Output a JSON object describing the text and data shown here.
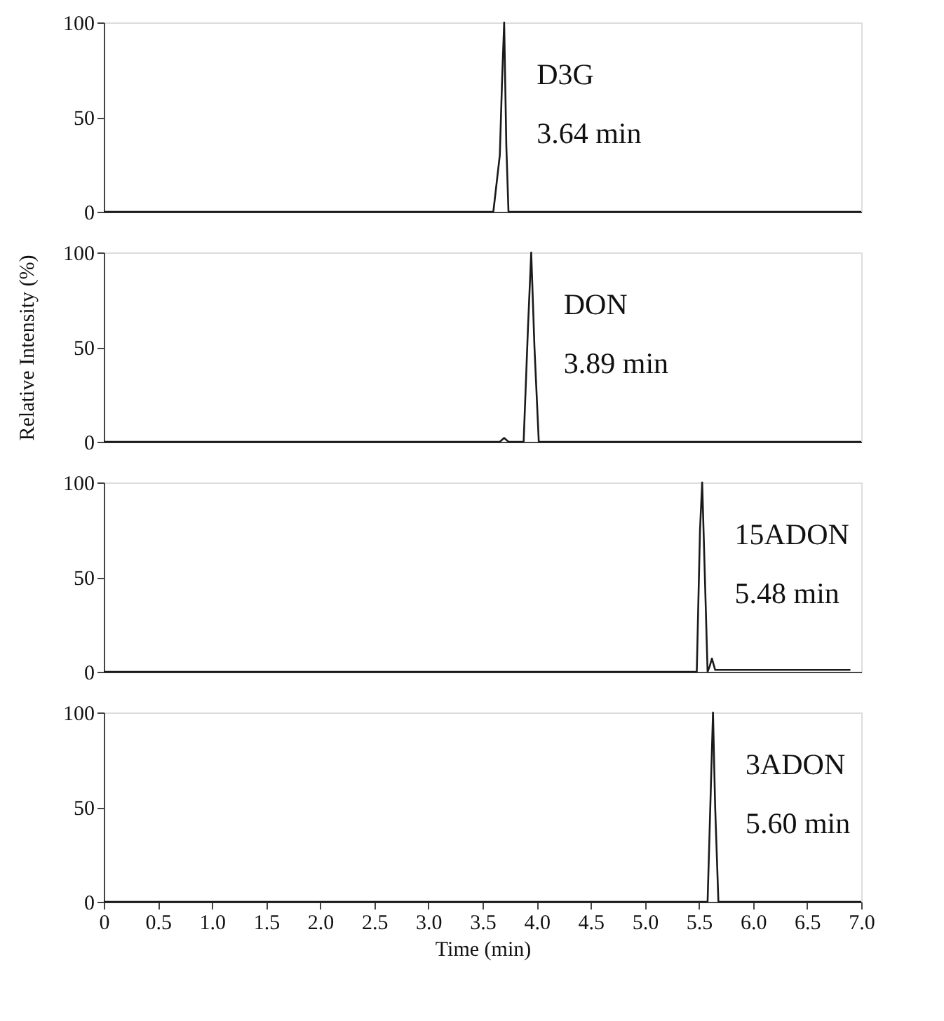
{
  "chart_data": [
    {
      "type": "line",
      "x": [
        0,
        1.0,
        2.0,
        3.0,
        3.6,
        3.66,
        3.68,
        3.7,
        3.72,
        3.74,
        4.5,
        5.5,
        6.5,
        7.0
      ],
      "series": [
        {
          "color": "#1a1a1a",
          "values": [
            0,
            0,
            0,
            0,
            0,
            30,
            68,
            100,
            35,
            0,
            0,
            0,
            0,
            0
          ]
        }
      ],
      "annotations": [
        "D3G",
        "3.64 min"
      ],
      "xlim": [
        0,
        7.0
      ],
      "ylim": [
        0,
        100
      ],
      "yticks": [
        0,
        50,
        100
      ],
      "tick_labels": "y",
      "grid": false
    },
    {
      "type": "line",
      "x": [
        0,
        1.0,
        2.0,
        3.0,
        3.66,
        3.7,
        3.74,
        3.88,
        3.92,
        3.95,
        3.98,
        4.02,
        4.5,
        5.5,
        6.5,
        7.0
      ],
      "series": [
        {
          "color": "#1a1a1a",
          "values": [
            0,
            0,
            0,
            0,
            0,
            2,
            0,
            0,
            60,
            100,
            50,
            0,
            0,
            0,
            0,
            0
          ]
        }
      ],
      "annotations": [
        "DON",
        "3.89 min"
      ],
      "ylabel": "Relative Intensity (%)",
      "xlim": [
        0,
        7.0
      ],
      "ylim": [
        0,
        100
      ],
      "yticks": [
        0,
        50,
        100
      ],
      "tick_labels": "y",
      "grid": false
    },
    {
      "type": "line",
      "x": [
        0,
        1.0,
        2.0,
        3.0,
        4.0,
        5.0,
        5.48,
        5.51,
        5.53,
        5.55,
        5.58,
        5.6,
        5.62,
        5.65,
        5.8,
        6.2,
        6.6,
        6.9
      ],
      "series": [
        {
          "color": "#1a1a1a",
          "values": [
            0,
            0,
            0,
            0,
            0,
            0,
            0,
            75,
            100,
            60,
            0,
            3,
            7,
            1,
            1,
            1,
            1,
            1
          ]
        }
      ],
      "annotations": [
        "15ADON",
        "5.48 min"
      ],
      "xlim": [
        0,
        7.0
      ],
      "ylim": [
        0,
        100
      ],
      "yticks": [
        0,
        50,
        100
      ],
      "tick_labels": "y",
      "grid": false
    },
    {
      "type": "line",
      "x": [
        0,
        1.0,
        2.0,
        3.0,
        4.0,
        5.0,
        5.58,
        5.61,
        5.63,
        5.65,
        5.68,
        6.0,
        6.5,
        7.0
      ],
      "series": [
        {
          "color": "#1a1a1a",
          "values": [
            0,
            0,
            0,
            0,
            0,
            0,
            0,
            60,
            100,
            50,
            0,
            0,
            0,
            0
          ]
        }
      ],
      "annotations": [
        "3ADON",
        "5.60 min"
      ],
      "xlabel": "Time (min)",
      "xlim": [
        0,
        7.0
      ],
      "ylim": [
        0,
        100
      ],
      "yticks": [
        0,
        50,
        100
      ],
      "xticks": [
        0,
        0.5,
        {
          "value": 1,
          "label": "1.0"
        },
        1.5,
        {
          "value": 2,
          "label": "2.0"
        },
        2.5,
        {
          "value": 3,
          "label": "3.0"
        },
        3.5,
        {
          "value": 4,
          "label": "4.0"
        },
        4.5,
        {
          "value": 5,
          "label": "5.0"
        },
        5.5,
        {
          "value": 6,
          "label": "6.0"
        },
        6.5,
        {
          "value": 7,
          "label": "7.0"
        }
      ],
      "grid": false
    }
  ]
}
